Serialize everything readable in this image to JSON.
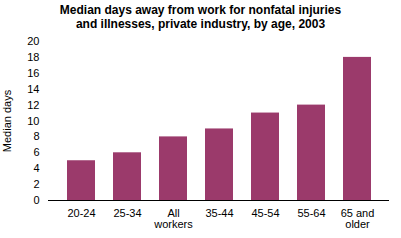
{
  "chart_data": {
    "type": "bar",
    "title": "Median days away from work for nonfatal injuries\nand illnesses, private industry, by age, 2003",
    "categories": [
      "20-24",
      "25-34",
      "All\nworkers",
      "35-44",
      "45-54",
      "55-64",
      "65 and\nolder"
    ],
    "values": [
      5,
      6,
      8,
      9,
      11,
      12,
      18
    ],
    "color": "#9B3A6B",
    "ylabel": "Median days",
    "ylim": [
      0,
      20
    ],
    "yticks": [
      0,
      2,
      4,
      6,
      8,
      10,
      12,
      14,
      16,
      18,
      20
    ],
    "grid": false
  }
}
